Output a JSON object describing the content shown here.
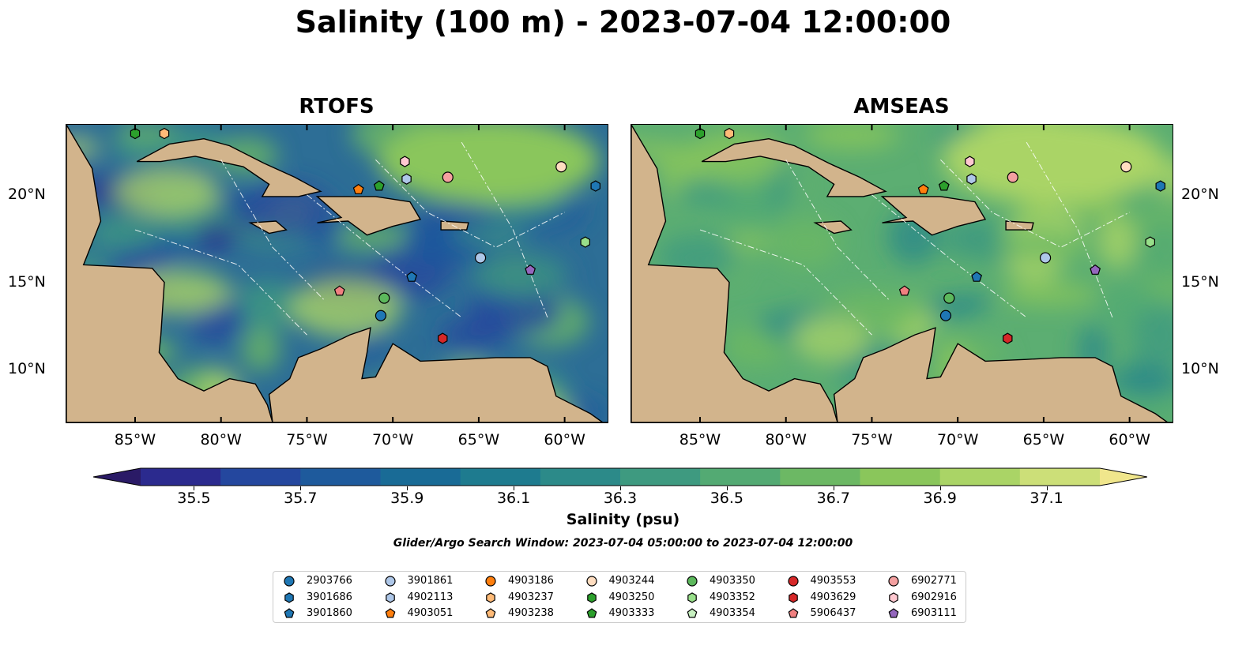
{
  "title": "Salinity (100 m) - 2023-07-04 12:00:00",
  "panels": [
    {
      "title": "RTOFS",
      "colors": {
        "deep": "#1e3a8c",
        "mid": "#2d6e96",
        "shallow": "#54a878",
        "fresh": "#2a1a66"
      }
    },
    {
      "title": "AMSEAS",
      "colors": {
        "deep": "#3a8c8a",
        "mid": "#5cae72",
        "shallow": "#7fc35a",
        "fresh": "#3e8f8a"
      }
    }
  ],
  "axes": {
    "lon_labels": [
      "85°W",
      "80°W",
      "75°W",
      "70°W",
      "65°W",
      "60°W"
    ],
    "lat_labels": [
      "20°N",
      "15°N",
      "10°N"
    ],
    "lon_range": [
      -89,
      -57.5
    ],
    "lat_range": [
      7,
      24
    ]
  },
  "colorbar": {
    "label": "Salinity (psu)",
    "range": [
      35.4,
      37.2
    ],
    "ticks": [
      "35.5",
      "35.7",
      "35.9",
      "36.1",
      "36.3",
      "36.5",
      "36.7",
      "36.9",
      "37.1"
    ],
    "colors": [
      "#2a1a66",
      "#2b2a8e",
      "#24479e",
      "#1e5a9c",
      "#196b96",
      "#1e7b8f",
      "#2c8a89",
      "#3e9a80",
      "#53aa73",
      "#6cb864",
      "#8ac65b",
      "#aad466",
      "#ccdf78",
      "#f0e68c"
    ]
  },
  "search_window": "Glider/Argo Search Window: 2023-07-04 05:00:00 to 2023-07-04 12:00:00",
  "land_color": "#d2b48c",
  "ocean_color": "#97b6e1",
  "legend": [
    {
      "id": "2903766",
      "color": "#1f77b4",
      "marker": "circle"
    },
    {
      "id": "3901686",
      "color": "#1f77b4",
      "marker": "hexagon"
    },
    {
      "id": "3901860",
      "color": "#1f77b4",
      "marker": "pentagon"
    },
    {
      "id": "3901861",
      "color": "#aec7e8",
      "marker": "circle"
    },
    {
      "id": "4902113",
      "color": "#aec7e8",
      "marker": "hexagon"
    },
    {
      "id": "4903051",
      "color": "#ff7f0e",
      "marker": "pentagon"
    },
    {
      "id": "4903186",
      "color": "#ff7f0e",
      "marker": "circle"
    },
    {
      "id": "4903237",
      "color": "#ffbb78",
      "marker": "hexagon"
    },
    {
      "id": "4903238",
      "color": "#ffbb78",
      "marker": "pentagon"
    },
    {
      "id": "4903244",
      "color": "#ffddc0",
      "marker": "circle"
    },
    {
      "id": "4903250",
      "color": "#2ca02c",
      "marker": "hexagon"
    },
    {
      "id": "4903333",
      "color": "#2ca02c",
      "marker": "pentagon"
    },
    {
      "id": "4903350",
      "color": "#5cb85c",
      "marker": "circle"
    },
    {
      "id": "4903352",
      "color": "#98df8a",
      "marker": "hexagon"
    },
    {
      "id": "4903354",
      "color": "#c7f0c0",
      "marker": "pentagon"
    },
    {
      "id": "4903553",
      "color": "#d62728",
      "marker": "circle"
    },
    {
      "id": "4903629",
      "color": "#d62728",
      "marker": "hexagon"
    },
    {
      "id": "5906437",
      "color": "#f08080",
      "marker": "pentagon"
    },
    {
      "id": "6902771",
      "color": "#f4a0a0",
      "marker": "circle"
    },
    {
      "id": "6902916",
      "color": "#ffc8d0",
      "marker": "hexagon"
    },
    {
      "id": "6903111",
      "color": "#9467bd",
      "marker": "pentagon"
    }
  ],
  "floats": [
    {
      "id": "4903250",
      "lon": -85,
      "lat": 23.5
    },
    {
      "id": "4903237",
      "lon": -83.3,
      "lat": 23.5
    },
    {
      "id": "6902916",
      "lon": -69.3,
      "lat": 21.9
    },
    {
      "id": "4902113",
      "lon": -69.2,
      "lat": 20.9
    },
    {
      "id": "6902771",
      "lon": -66.8,
      "lat": 21.0
    },
    {
      "id": "4903244",
      "lon": -60.2,
      "lat": 21.6
    },
    {
      "id": "3901686",
      "lon": -58.2,
      "lat": 20.5
    },
    {
      "id": "4903051",
      "lon": -72.0,
      "lat": 20.3
    },
    {
      "id": "4903333",
      "lon": -70.8,
      "lat": 20.5
    },
    {
      "id": "4903352",
      "lon": -58.8,
      "lat": 17.3
    },
    {
      "id": "3901861",
      "lon": -64.9,
      "lat": 16.4
    },
    {
      "id": "6903111",
      "lon": -62.0,
      "lat": 15.7
    },
    {
      "id": "3901860",
      "lon": -68.9,
      "lat": 15.3
    },
    {
      "id": "5906437",
      "lon": -73.1,
      "lat": 14.5
    },
    {
      "id": "4903350",
      "lon": -70.5,
      "lat": 14.1
    },
    {
      "id": "2903766",
      "lon": -70.7,
      "lat": 13.1
    },
    {
      "id": "4903629",
      "lon": -67.1,
      "lat": 11.8
    }
  ]
}
